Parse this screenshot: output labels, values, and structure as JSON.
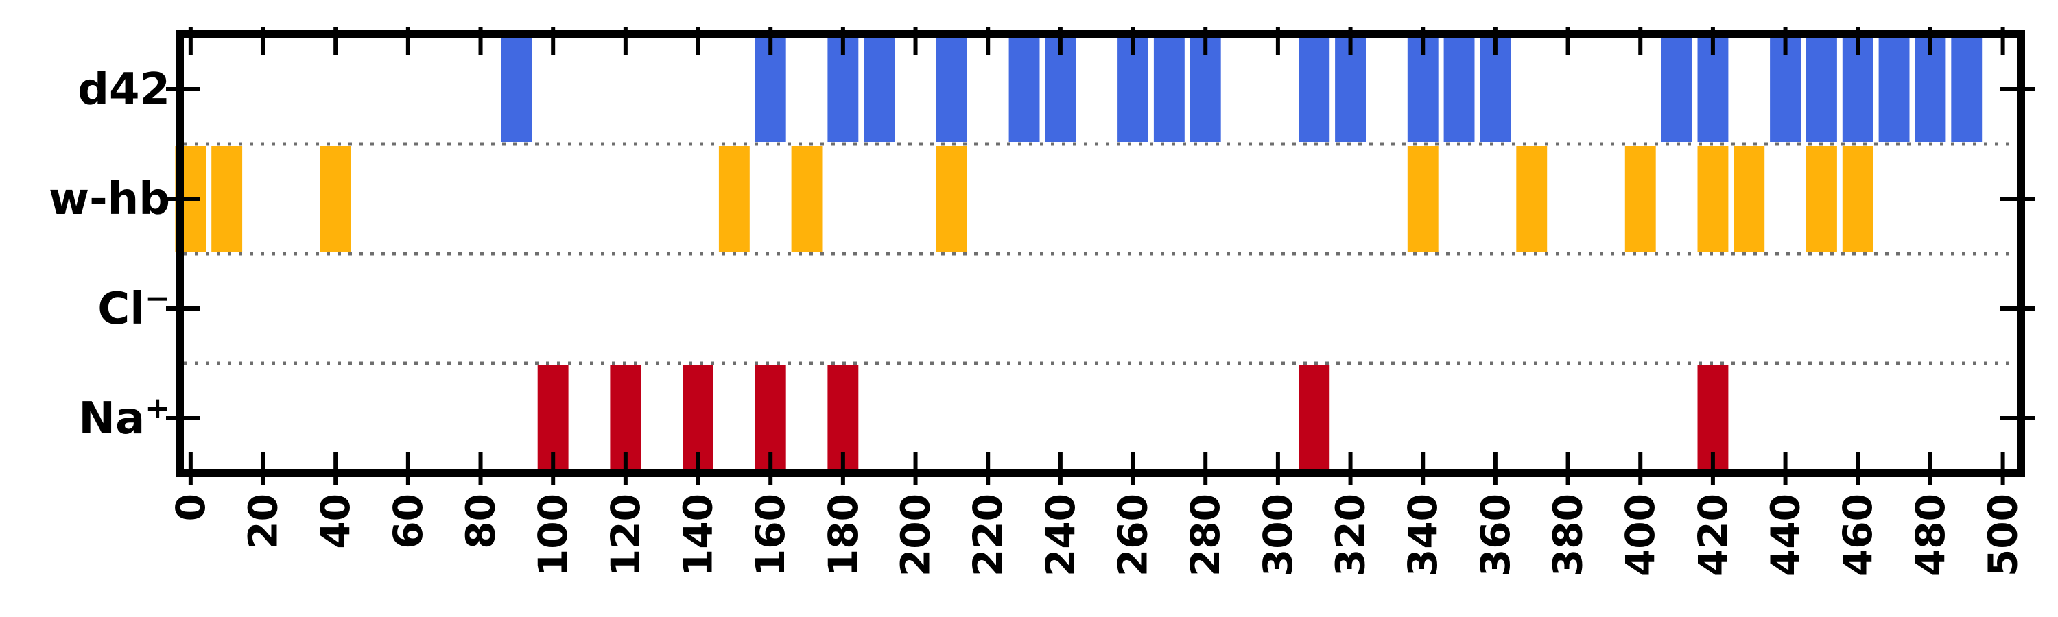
{
  "chart_data": {
    "type": "event-raster",
    "title": "",
    "xlabel": "",
    "ylabel": "",
    "xlim": [
      -3,
      505
    ],
    "bar_width": 8.5,
    "grid": false,
    "row_separators": "dotted",
    "x_ticks": [
      0,
      20,
      40,
      60,
      80,
      100,
      120,
      140,
      160,
      180,
      200,
      220,
      240,
      260,
      280,
      300,
      320,
      340,
      360,
      380,
      400,
      420,
      440,
      460,
      480,
      500
    ],
    "rows": [
      {
        "label": "d42",
        "sup": "",
        "color": "#4169e1",
        "events": [
          90,
          160,
          180,
          190,
          210,
          230,
          240,
          260,
          270,
          280,
          310,
          320,
          340,
          350,
          360,
          410,
          420,
          440,
          450,
          460,
          470,
          480,
          490
        ]
      },
      {
        "label": "w-hb",
        "sup": "",
        "color": "#ffb20a",
        "events": [
          0,
          10,
          40,
          150,
          170,
          210,
          340,
          370,
          400,
          420,
          430,
          450,
          460
        ]
      },
      {
        "label": "Cl",
        "sup": "−",
        "color": "#4169e1",
        "events": []
      },
      {
        "label": "Na",
        "sup": "+",
        "color": "#c00018",
        "events": [
          100,
          120,
          140,
          160,
          180,
          310,
          420
        ]
      }
    ]
  }
}
